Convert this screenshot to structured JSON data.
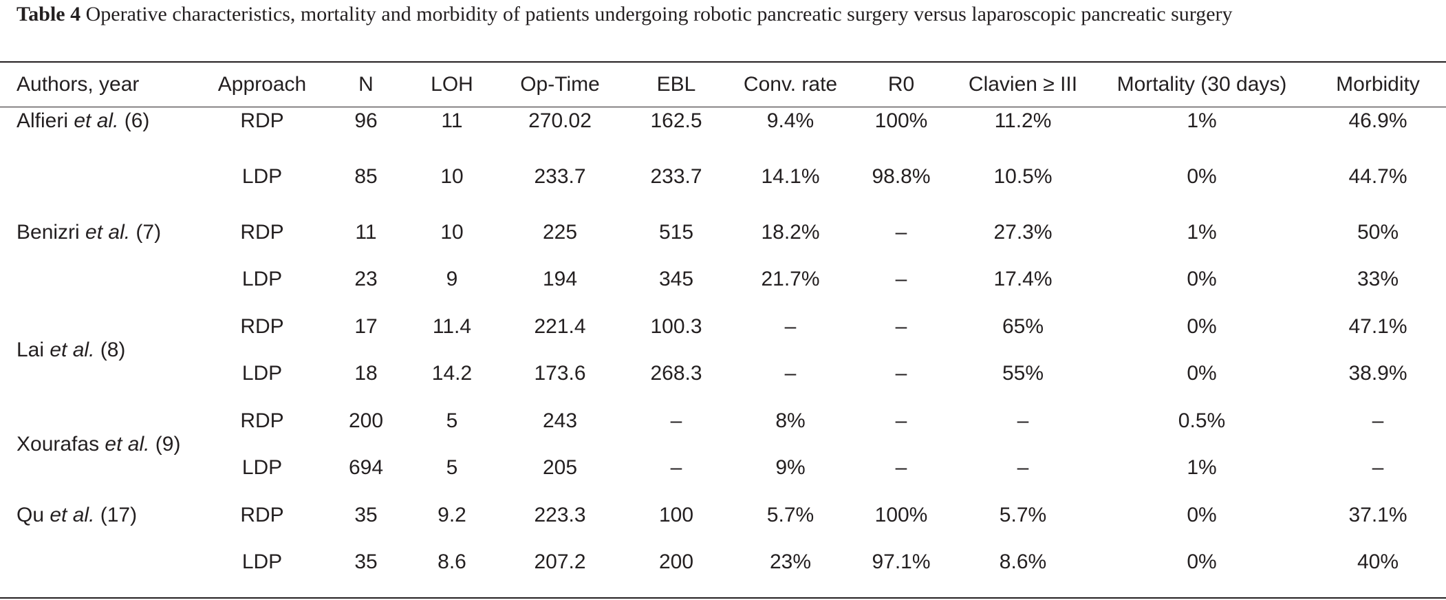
{
  "caption": {
    "label": "Table 4",
    "text": " Operative characteristics, mortality and morbidity of patients undergoing robotic pancreatic surgery versus laparoscopic pancreatic surgery"
  },
  "headers": [
    "Authors, year",
    "Approach",
    "N",
    "LOH",
    "Op-Time",
    "EBL",
    "Conv. rate",
    "R0",
    "Clavien ≥ III",
    "Mortality (30 days)",
    "Morbidity"
  ],
  "authors": [
    {
      "name": "Alfieri",
      "etal": "et al.",
      "ref": "(6)"
    },
    {
      "name": "Benizri",
      "etal": "et al.",
      "ref": "(7)"
    },
    {
      "name": "Lai",
      "etal": "et al.",
      "ref": "(8)"
    },
    {
      "name": "Xourafas",
      "etal": "et al.",
      "ref": "(9)"
    },
    {
      "name": "Qu",
      "etal": "et al.",
      "ref": "(17)"
    }
  ],
  "rows": [
    [
      "RDP",
      "96",
      "11",
      "270.02",
      "162.5",
      "9.4%",
      "100%",
      "11.2%",
      "1%",
      "46.9%"
    ],
    [
      "LDP",
      "85",
      "10",
      "233.7",
      "233.7",
      "14.1%",
      "98.8%",
      "10.5%",
      "0%",
      "44.7%"
    ],
    [
      "RDP",
      "11",
      "10",
      "225",
      "515",
      "18.2%",
      "–",
      "27.3%",
      "1%",
      "50%"
    ],
    [
      "LDP",
      "23",
      "9",
      "194",
      "345",
      "21.7%",
      "–",
      "17.4%",
      "0%",
      "33%"
    ],
    [
      "RDP",
      "17",
      "11.4",
      "221.4",
      "100.3",
      "–",
      "–",
      "65%",
      "0%",
      "47.1%"
    ],
    [
      "LDP",
      "18",
      "14.2",
      "173.6",
      "268.3",
      "–",
      "–",
      "55%",
      "0%",
      "38.9%"
    ],
    [
      "RDP",
      "200",
      "5",
      "243",
      "–",
      "8%",
      "–",
      "–",
      "0.5%",
      "–"
    ],
    [
      "LDP",
      "694",
      "5",
      "205",
      "–",
      "9%",
      "–",
      "–",
      "1%",
      "–"
    ],
    [
      "RDP",
      "35",
      "9.2",
      "223.3",
      "100",
      "5.7%",
      "100%",
      "5.7%",
      "0%",
      "37.1%"
    ],
    [
      "LDP",
      "35",
      "8.6",
      "207.2",
      "200",
      "23%",
      "97.1%",
      "8.6%",
      "0%",
      "40%"
    ]
  ]
}
